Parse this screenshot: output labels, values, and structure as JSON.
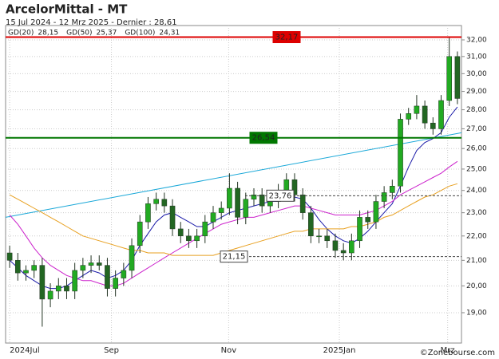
{
  "chart_data": {
    "type": "candlestick",
    "title": "ArcelorMittal - MT",
    "subtitle": "15 Jul 2024 - 12 Mrz 2025 - Dernier : 28,61",
    "watermark": "©Zonebourse.com",
    "log_scale": true,
    "ylim": [
      17.93,
      32.89
    ],
    "yticks": [
      {
        "value": 19,
        "label": "19,00"
      },
      {
        "value": 20,
        "label": "20,00"
      },
      {
        "value": 21,
        "label": "21,00"
      },
      {
        "value": 22,
        "label": "22,00"
      },
      {
        "value": 23,
        "label": "23,00"
      },
      {
        "value": 24,
        "label": "24,00"
      },
      {
        "value": 25,
        "label": "25,00"
      },
      {
        "value": 26,
        "label": "26,00"
      },
      {
        "value": 27,
        "label": "27,00"
      },
      {
        "value": 28,
        "label": "28,00"
      },
      {
        "value": 29,
        "label": "29,00"
      },
      {
        "value": 30,
        "label": "30,00"
      },
      {
        "value": 31,
        "label": "31,00"
      },
      {
        "value": 32,
        "label": "32,00"
      }
    ],
    "xticks": [
      {
        "value": 0,
        "label": "2024Jul"
      },
      {
        "value": 12.5,
        "label": "Sep"
      },
      {
        "value": 26.9,
        "label": "Nov"
      },
      {
        "value": 40.5,
        "label": "2025Jan"
      },
      {
        "value": 53.8,
        "label": "Mrz"
      }
    ],
    "up_color": "#22aa22",
    "down_color": "#226622",
    "open": [
      21.3,
      21.0,
      20.5,
      20.6,
      20.8,
      19.5,
      19.8,
      20.0,
      19.8,
      20.6,
      20.8,
      20.9,
      20.8,
      19.9,
      20.3,
      20.6,
      21.6,
      22.6,
      23.4,
      23.6,
      23.3,
      22.3,
      22.0,
      21.8,
      22.0,
      22.6,
      23.0,
      23.2,
      24.1,
      22.8,
      23.6,
      23.8,
      23.3,
      23.5,
      24.0,
      24.5,
      23.8,
      23.0,
      22.0,
      22.0,
      21.8,
      21.4,
      21.3,
      21.8,
      22.8,
      22.6,
      23.5,
      23.9,
      24.2,
      27.5,
      27.8,
      28.2,
      27.3,
      27.0,
      28.5,
      31.0
    ],
    "high": [
      21.6,
      21.3,
      20.8,
      21.0,
      21.1,
      20.1,
      20.3,
      20.3,
      20.9,
      21.1,
      21.2,
      21.2,
      21.1,
      20.6,
      20.9,
      21.9,
      22.9,
      23.7,
      23.9,
      23.9,
      23.6,
      22.6,
      22.3,
      22.3,
      22.9,
      23.3,
      23.5,
      24.8,
      24.4,
      23.9,
      24.1,
      24.1,
      23.8,
      24.3,
      24.8,
      24.8,
      24.1,
      23.3,
      22.3,
      22.3,
      22.1,
      21.7,
      22.1,
      23.1,
      23.1,
      23.8,
      24.2,
      24.5,
      27.8,
      28.1,
      28.8,
      28.5,
      27.6,
      28.8,
      32.17,
      31.3
    ],
    "low": [
      20.7,
      20.2,
      20.2,
      20.3,
      18.5,
      19.2,
      19.5,
      19.5,
      19.5,
      20.3,
      20.5,
      20.6,
      19.6,
      19.6,
      20.0,
      20.3,
      21.3,
      22.3,
      23.1,
      23.0,
      22.0,
      21.7,
      21.5,
      21.5,
      21.7,
      22.3,
      22.7,
      22.9,
      22.5,
      22.5,
      23.3,
      23.0,
      23.0,
      23.2,
      23.7,
      23.5,
      22.7,
      21.7,
      21.7,
      21.5,
      21.1,
      21.0,
      21.0,
      21.5,
      22.3,
      22.3,
      23.2,
      23.6,
      23.9,
      27.2,
      27.5,
      27.0,
      26.7,
      26.7,
      28.2,
      28.3
    ],
    "close": [
      21.0,
      20.5,
      20.6,
      20.8,
      19.5,
      19.8,
      20.0,
      19.8,
      20.6,
      20.8,
      20.9,
      20.8,
      19.9,
      20.3,
      20.6,
      21.6,
      22.6,
      23.4,
      23.6,
      23.3,
      22.3,
      22.0,
      21.8,
      22.0,
      22.6,
      23.0,
      23.2,
      24.1,
      22.8,
      23.6,
      23.8,
      23.3,
      23.5,
      24.0,
      24.5,
      23.8,
      23.0,
      22.0,
      22.0,
      21.8,
      21.4,
      21.3,
      21.8,
      22.8,
      22.6,
      23.5,
      23.9,
      24.2,
      27.5,
      27.8,
      28.2,
      27.3,
      27.0,
      28.5,
      31.0,
      28.61
    ],
    "series": [
      {
        "name": "GD(20)",
        "color": "#1a1aa8",
        "last": {
          "value": 28.15,
          "label": "28,15"
        },
        "values": [
          21.0,
          20.7,
          20.4,
          20.2,
          20.0,
          19.9,
          19.9,
          20.0,
          20.2,
          20.4,
          20.6,
          20.5,
          20.3,
          20.4,
          20.6,
          21.0,
          21.6,
          22.1,
          22.6,
          22.9,
          23.0,
          22.8,
          22.6,
          22.4,
          22.4,
          22.6,
          22.8,
          23.0,
          23.1,
          23.2,
          23.3,
          23.4,
          23.5,
          23.5,
          23.6,
          23.7,
          23.6,
          23.2,
          22.7,
          22.3,
          22.0,
          21.8,
          21.7,
          21.9,
          22.2,
          22.6,
          23.0,
          23.4,
          24.2,
          25.1,
          25.9,
          26.3,
          26.5,
          26.8,
          27.6,
          28.15
        ]
      },
      {
        "name": "GD(50)",
        "color": "#cc22cc",
        "last": {
          "value": 25.37,
          "label": "25,37"
        },
        "values": [
          22.9,
          22.5,
          22.0,
          21.5,
          21.1,
          20.8,
          20.6,
          20.4,
          20.3,
          20.2,
          20.2,
          20.1,
          20.0,
          20.0,
          20.1,
          20.3,
          20.5,
          20.7,
          20.9,
          21.1,
          21.3,
          21.5,
          21.7,
          21.9,
          22.1,
          22.3,
          22.5,
          22.6,
          22.7,
          22.8,
          22.8,
          22.9,
          23.0,
          23.1,
          23.2,
          23.3,
          23.3,
          23.2,
          23.1,
          23.0,
          22.9,
          22.9,
          22.9,
          22.9,
          23.0,
          23.1,
          23.3,
          23.5,
          23.8,
          24.0,
          24.2,
          24.4,
          24.6,
          24.8,
          25.1,
          25.37
        ]
      },
      {
        "name": "GD(100)",
        "color": "#e8a020",
        "last": {
          "value": 24.31,
          "label": "24,31"
        },
        "values": [
          23.8,
          23.6,
          23.4,
          23.2,
          23.0,
          22.8,
          22.6,
          22.4,
          22.2,
          22.0,
          21.9,
          21.8,
          21.7,
          21.6,
          21.5,
          21.4,
          21.4,
          21.3,
          21.3,
          21.3,
          21.2,
          21.2,
          21.2,
          21.2,
          21.2,
          21.2,
          21.3,
          21.4,
          21.5,
          21.6,
          21.7,
          21.8,
          21.9,
          22.0,
          22.1,
          22.2,
          22.2,
          22.3,
          22.3,
          22.3,
          22.3,
          22.3,
          22.4,
          22.4,
          22.5,
          22.6,
          22.8,
          22.9,
          23.1,
          23.3,
          23.5,
          23.7,
          23.8,
          24.0,
          24.2,
          24.31
        ]
      }
    ],
    "trendline": {
      "color": "#1aa8d8",
      "values": [
        22.8,
        26.8
      ]
    },
    "levels": [
      {
        "value": 32.17,
        "label": "32,17",
        "color": "#dd0000",
        "style": "solid"
      },
      {
        "value": 26.54,
        "label": "26,54",
        "color": "#007700",
        "style": "solid"
      },
      {
        "value": 23.76,
        "label": "23,76",
        "color": "#444444",
        "style": "dashed"
      },
      {
        "value": 21.15,
        "label": "21,15",
        "color": "#444444",
        "style": "dashed"
      }
    ]
  }
}
